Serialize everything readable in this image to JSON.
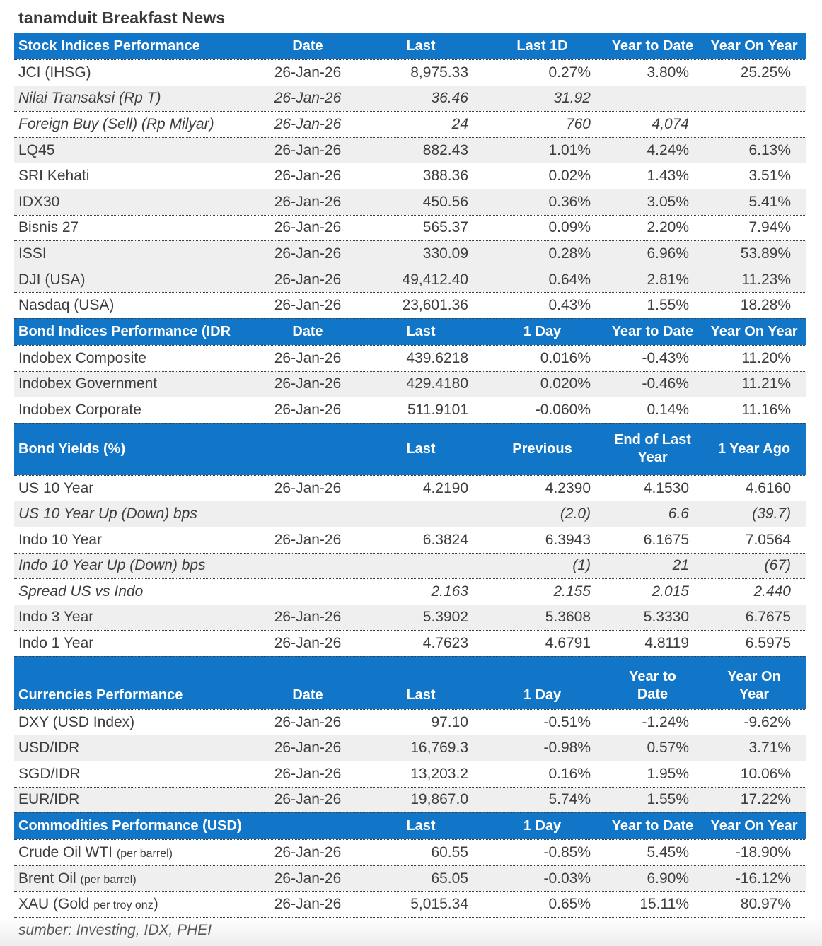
{
  "title": "tanamduit Breakfast News",
  "source_note": "sumber: Investing, IDX, PHEI",
  "colors": {
    "header_bg": "#1276C8",
    "header_text": "#FFFFFF",
    "row_alt_bg": "#EFEFEF",
    "body_text": "#3D3D3D",
    "muted_text": "#595959"
  },
  "sections": {
    "stock": {
      "header": {
        "title": "Stock Indices Performance",
        "date": "Date",
        "last": "Last",
        "day": "Last 1D",
        "ytd": "Year to Date",
        "yoy": "Year On Year"
      },
      "rows": [
        {
          "label": "JCI (IHSG)",
          "cells": [
            "26-Jan-26",
            "8,975.33",
            "0.27%",
            "3.80%",
            "25.25%"
          ],
          "italic": false,
          "shaded": false
        },
        {
          "label": "Nilai Transaksi (Rp T)",
          "cells": [
            "26-Jan-26",
            "36.46",
            "31.92",
            "",
            ""
          ],
          "italic": true,
          "shaded": true
        },
        {
          "label": "Foreign Buy (Sell) (Rp Milyar)",
          "cells": [
            "26-Jan-26",
            "24",
            "760",
            "4,074",
            ""
          ],
          "italic": true,
          "shaded": false
        },
        {
          "label": "LQ45",
          "cells": [
            "26-Jan-26",
            "882.43",
            "1.01%",
            "4.24%",
            "6.13%"
          ],
          "italic": false,
          "shaded": true
        },
        {
          "label": "SRI Kehati",
          "cells": [
            "26-Jan-26",
            "388.36",
            "0.02%",
            "1.43%",
            "3.51%"
          ],
          "italic": false,
          "shaded": false
        },
        {
          "label": "IDX30",
          "cells": [
            "26-Jan-26",
            "450.56",
            "0.36%",
            "3.05%",
            "5.41%"
          ],
          "italic": false,
          "shaded": true
        },
        {
          "label": "Bisnis 27",
          "cells": [
            "26-Jan-26",
            "565.37",
            "0.09%",
            "2.20%",
            "7.94%"
          ],
          "italic": false,
          "shaded": false
        },
        {
          "label": "ISSI",
          "cells": [
            "26-Jan-26",
            "330.09",
            "0.28%",
            "6.96%",
            "53.89%"
          ],
          "italic": false,
          "shaded": true
        },
        {
          "label": "DJI (USA)",
          "cells": [
            "26-Jan-26",
            "49,412.40",
            "0.64%",
            "2.81%",
            "11.23%"
          ],
          "italic": false,
          "shaded": true
        },
        {
          "label": "Nasdaq (USA)",
          "cells": [
            "26-Jan-26",
            "23,601.36",
            "0.43%",
            "1.55%",
            "18.28%"
          ],
          "italic": false,
          "shaded": false
        }
      ]
    },
    "bond_indices": {
      "header": {
        "title": "Bond Indices Performance (IDR",
        "date": "Date",
        "last": "Last",
        "day": "1 Day",
        "ytd": "Year to Date",
        "yoy": "Year On Year"
      },
      "rows": [
        {
          "label": "Indobex Composite",
          "cells": [
            "26-Jan-26",
            "439.6218",
            "0.016%",
            "-0.43%",
            "11.20%"
          ],
          "italic": false,
          "shaded": false
        },
        {
          "label": "Indobex Government",
          "cells": [
            "26-Jan-26",
            "429.4180",
            "0.020%",
            "-0.46%",
            "11.21%"
          ],
          "italic": false,
          "shaded": true
        },
        {
          "label": "Indobex Corporate",
          "cells": [
            "26-Jan-26",
            "511.9101",
            "-0.060%",
            "0.14%",
            "11.16%"
          ],
          "italic": false,
          "shaded": false
        }
      ]
    },
    "bond_yields": {
      "header": {
        "title": "Bond Yields (%)",
        "date": "",
        "last": "Last",
        "day": "Previous",
        "ytd": "End of Last Year",
        "yoy": "1 Year Ago"
      },
      "rows": [
        {
          "label": "US 10 Year",
          "cells": [
            "26-Jan-26",
            "4.2190",
            "4.2390",
            "4.1530",
            "4.6160"
          ],
          "italic": false,
          "shaded": false
        },
        {
          "label": "US 10 Year Up (Down) bps",
          "cells": [
            "",
            "",
            "(2.0)",
            "6.6",
            "(39.7)"
          ],
          "italic": true,
          "shaded": true
        },
        {
          "label": "Indo 10 Year",
          "cells": [
            "26-Jan-26",
            "6.3824",
            "6.3943",
            "6.1675",
            "7.0564"
          ],
          "italic": false,
          "shaded": false
        },
        {
          "label": "Indo 10 Year Up (Down) bps",
          "cells": [
            "",
            "",
            "(1)",
            "21",
            "(67)"
          ],
          "italic": true,
          "shaded": true
        },
        {
          "label": "Spread US vs Indo",
          "cells": [
            "",
            "2.163",
            "2.155",
            "2.015",
            "2.440"
          ],
          "italic": true,
          "shaded": false
        },
        {
          "label": "Indo 3 Year",
          "cells": [
            "26-Jan-26",
            "5.3902",
            "5.3608",
            "5.3330",
            "6.7675"
          ],
          "italic": false,
          "shaded": true
        },
        {
          "label": "Indo 1 Year",
          "cells": [
            "26-Jan-26",
            "4.7623",
            "4.6791",
            "4.8119",
            "6.5975"
          ],
          "italic": false,
          "shaded": false
        }
      ]
    },
    "currencies": {
      "header": {
        "title": "Currencies Performance",
        "date": "Date",
        "last": "Last",
        "day": "1 Day",
        "ytd": "Year to Date",
        "yoy": "Year On Year"
      },
      "rows": [
        {
          "label": "DXY (USD Index)",
          "cells": [
            "26-Jan-26",
            "97.10",
            "-0.51%",
            "-1.24%",
            "-9.62%"
          ],
          "italic": false,
          "shaded": false
        },
        {
          "label": "USD/IDR",
          "cells": [
            "26-Jan-26",
            "16,769.3",
            "-0.98%",
            "0.57%",
            "3.71%"
          ],
          "italic": false,
          "shaded": true
        },
        {
          "label": "SGD/IDR",
          "cells": [
            "26-Jan-26",
            "13,203.2",
            "0.16%",
            "1.95%",
            "10.06%"
          ],
          "italic": false,
          "shaded": false
        },
        {
          "label": "EUR/IDR",
          "cells": [
            "26-Jan-26",
            "19,867.0",
            "5.74%",
            "1.55%",
            "17.22%"
          ],
          "italic": false,
          "shaded": true
        }
      ]
    },
    "commodities": {
      "header": {
        "title": "Commodities Performance (USD)",
        "date": "",
        "last": "Last",
        "day": "1 Day",
        "ytd": "Year to Date",
        "yoy": "Year On Year"
      },
      "rows": [
        {
          "label": "Crude Oil WTI ",
          "label_small": "(per barrel)",
          "label_post": "",
          "cells": [
            "26-Jan-26",
            "60.55",
            "-0.85%",
            "5.45%",
            "-18.90%"
          ],
          "italic": false,
          "shaded": false
        },
        {
          "label": "Brent Oil ",
          "label_small": "(per barrel)",
          "label_post": "",
          "cells": [
            "26-Jan-26",
            "65.05",
            "-0.03%",
            "6.90%",
            "-16.12%"
          ],
          "italic": false,
          "shaded": true
        },
        {
          "label": "XAU (Gold ",
          "label_small": "per troy onz",
          "label_post": ")",
          "cells": [
            "26-Jan-26",
            "5,015.34",
            "0.65%",
            "15.11%",
            "80.97%"
          ],
          "italic": false,
          "shaded": false
        }
      ]
    }
  }
}
